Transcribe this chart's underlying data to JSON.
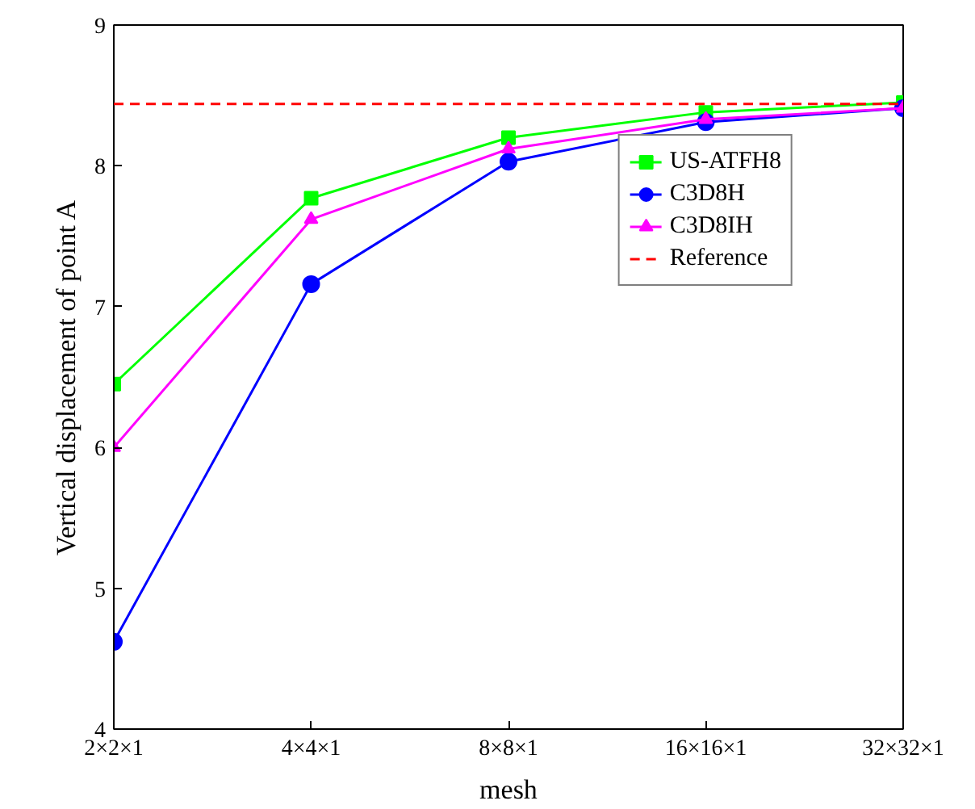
{
  "chart_data": {
    "type": "line",
    "xlabel": "mesh",
    "ylabel": "Vertical displacement of point A",
    "categories": [
      "2×2×1",
      "4×4×1",
      "8×8×1",
      "16×16×1",
      "32×32×1"
    ],
    "ylim": [
      4,
      9
    ],
    "yticks": [
      4,
      5,
      6,
      7,
      8,
      9
    ],
    "grid": false,
    "legend": "top right",
    "series": [
      {
        "name": "US-ATFH8",
        "color": "#00ff00",
        "marker": "square",
        "values": [
          6.45,
          7.77,
          8.2,
          8.38,
          8.45
        ]
      },
      {
        "name": "C3D8H",
        "color": "#0000ff",
        "marker": "circle",
        "values": [
          4.62,
          7.16,
          8.03,
          8.31,
          8.41
        ]
      },
      {
        "name": "C3D8IH",
        "color": "#ff00ff",
        "marker": "triangle",
        "values": [
          6.0,
          7.62,
          8.12,
          8.33,
          8.41
        ]
      }
    ],
    "ref_lines": [
      {
        "axis": "y",
        "value": 8.44,
        "label": "Reference",
        "color": "#ff0000",
        "line_style": "dashed"
      }
    ]
  }
}
